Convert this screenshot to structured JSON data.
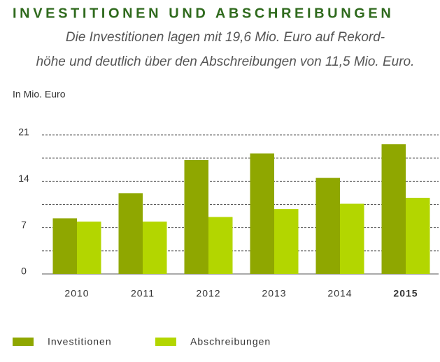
{
  "chart_data": {
    "type": "bar",
    "title": "INVESTITIONEN UND ABSCHREIBUNGEN",
    "subtitle": [
      "Die Investitionen lagen mit 19,6 Mio. Euro auf Rekord-",
      "höhe und deutlich über den Abschreibungen von 11,5 Mio. Euro."
    ],
    "y_label": "In Mio. Euro",
    "categories": [
      "2010",
      "2011",
      "2012",
      "2013",
      "2014",
      "2015"
    ],
    "emphasized_category": 5,
    "series": [
      {
        "name": "Investitionen",
        "color": "#8fa700",
        "values": [
          8.4,
          12.2,
          17.2,
          18.2,
          14.5,
          19.6
        ]
      },
      {
        "name": "Abschreibungen",
        "color": "#b3d600",
        "values": [
          7.9,
          7.9,
          8.6,
          9.8,
          10.6,
          11.5
        ]
      }
    ],
    "ylim": [
      0,
      21
    ],
    "yticks": [
      0,
      7,
      14,
      21
    ],
    "minor_yticks": [
      3.5,
      10.5,
      17.5
    ],
    "grid": true
  }
}
